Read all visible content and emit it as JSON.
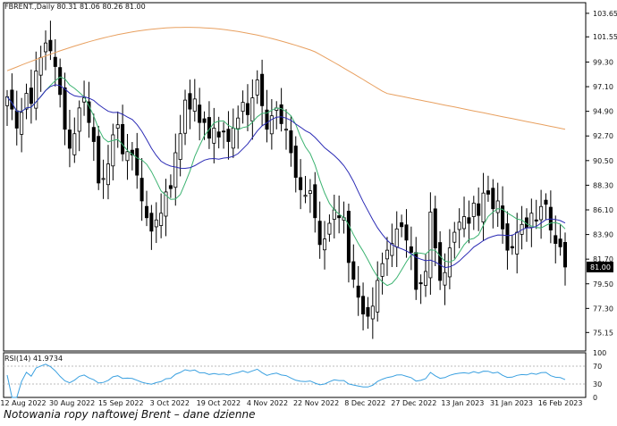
{
  "caption": "Notowania ropy naftowej Brent – dane dzienne",
  "colors": {
    "candle_line": "#000000",
    "bull_fill": "#ffffff",
    "bear_fill": "#000000",
    "ma_fast": "#3cb371",
    "ma_mid": "#2b2bb5",
    "ma_slow": "#e8a060",
    "rsi_line": "#3aa0e0",
    "grid_frame": "#000000",
    "price_box_bg": "#000000",
    "price_box_text": "#ffffff"
  },
  "chart_data": [
    {
      "type": "candlestick",
      "title": "FBRENT.,Daily  80.31 81.06 80.26 81.00",
      "ylim": [
        73.5,
        104.6
      ],
      "y_ticks": [
        "103.65",
        "101.55",
        "99.30",
        "97.10",
        "94.90",
        "92.70",
        "90.50",
        "88.30",
        "86.10",
        "83.90",
        "81.70",
        "79.50",
        "77.30",
        "75.15"
      ],
      "last_price_label": "81.00",
      "x_tick_labels": [
        "12 Aug 2022",
        "30 Aug 2022",
        "15 Sep 2022",
        "3 Oct 2022",
        "19 Oct 2022",
        "4 Nov 2022",
        "22 Nov 2022",
        "8 Dec 2022",
        "27 Dec 2022",
        "13 Jan 2023",
        "31 Jan 2023",
        "16 Feb 2023"
      ],
      "series": [
        {
          "kind": "close",
          "values": [
            96.2,
            95.1,
            93.4,
            94.8,
            96.5,
            95.6,
            98.5,
            99.7,
            101.0,
            100.3,
            98.9,
            96.4,
            93.3,
            91.6,
            92.9,
            95.2,
            96.1,
            93.9,
            92.2,
            88.5,
            88.9,
            90.2,
            92.8,
            93.7,
            91.1,
            91.3,
            91.0,
            89.2,
            86.9,
            85.4,
            84.2,
            85.2,
            85.8,
            87.7,
            88.0,
            91.2,
            92.9,
            95.9,
            95.1,
            96.0,
            93.9,
            93.9,
            92.5,
            93.4,
            92.6,
            93.1,
            92.2,
            93.4,
            94.3,
            95.7,
            94.6,
            96.1,
            97.7,
            95.4,
            93.3,
            94.5,
            95.2,
            93.8,
            93.3,
            91.2,
            89.0,
            87.9,
            87.4,
            87.8,
            85.4,
            83.0,
            83.5,
            84.9,
            86.1,
            85.4,
            85.4,
            81.4,
            79.9,
            78.3,
            76.8,
            76.6,
            77.5,
            79.8,
            81.3,
            82.5,
            83.1,
            84.4,
            84.6,
            83.4,
            82.3,
            79.0,
            79.5,
            80.6,
            85.9,
            82.7,
            79.8,
            80.5,
            82.7,
            84.1,
            85.0,
            85.5,
            84.9,
            86.7,
            85.6,
            87.6,
            87.5,
            86.2,
            86.9,
            84.4,
            82.5,
            82.7,
            84.1,
            84.8,
            84.5,
            85.8,
            85.1,
            86.4,
            86.6,
            84.3,
            83.1,
            82.8,
            81.0
          ],
          "note": "approximate reconstruction of daily closes read from candles"
        },
        {
          "kind": "MA fast",
          "values": []
        },
        {
          "kind": "MA mid",
          "values": []
        },
        {
          "kind": "MA slow",
          "values": []
        }
      ],
      "grid": false
    },
    {
      "type": "line",
      "title": "RSI(14) 41.9734",
      "ylim": [
        0,
        100
      ],
      "y_ticks": [
        "100",
        "70",
        "30",
        "0"
      ],
      "series": [
        {
          "values": []
        }
      ]
    }
  ]
}
